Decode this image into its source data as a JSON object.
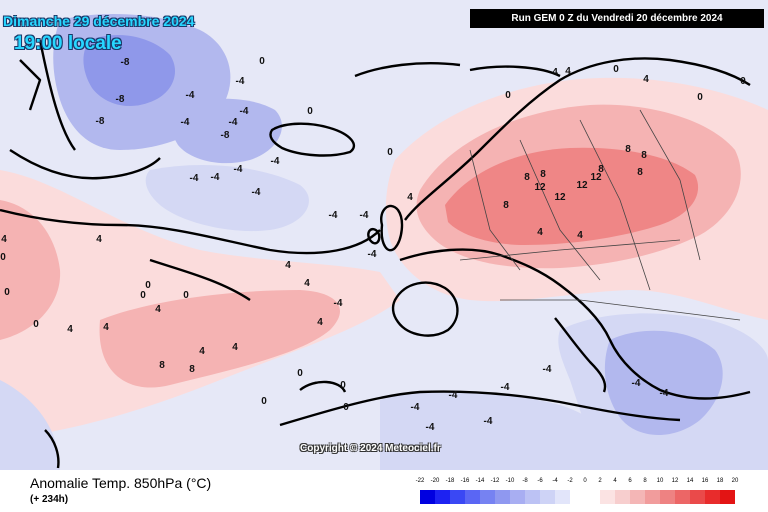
{
  "header": {
    "date_text": "Dimanche 29 décembre 2024",
    "time_text": "19:00 locale",
    "run_text": "Run GEM 0 Z du Vendredi 20 décembre 2024"
  },
  "footer": {
    "title": "Anomalie Temp. 850hPa (°C)",
    "lead_time": "(+ 234h)",
    "copyright": "Copyright © 2024 Meteociel.fr"
  },
  "legend": {
    "labels": [
      "-22",
      "-20",
      "-18",
      "-16",
      "-14",
      "-12",
      "-10",
      "-8",
      "-6",
      "-4",
      "-2",
      "0",
      "2",
      "4",
      "6",
      "8",
      "10",
      "12",
      "14",
      "16",
      "18",
      "20"
    ],
    "colors": [
      "#0000e0",
      "#1d22f2",
      "#3a48f4",
      "#5a66f4",
      "#7682f2",
      "#8f98f0",
      "#a8aef2",
      "#bcc2f4",
      "#ced3f6",
      "#e2e5fa",
      "#ffffff",
      "#ffffff",
      "#fbe3e3",
      "#f7cece",
      "#f4b6b6",
      "#f19c9c",
      "#ee8282",
      "#ec6666",
      "#ea4a4a",
      "#e82c2c",
      "#e31414"
    ]
  },
  "map_labels": [
    {
      "group": "north_atlantic",
      "values": [
        "-8",
        "-8",
        "-8",
        "-4",
        "-4",
        "-4",
        "-4",
        "-8",
        "-4",
        "-4",
        "-4",
        "-4",
        "-4",
        "-4",
        "-4",
        "-4",
        "0",
        "0",
        "0",
        "0"
      ]
    },
    {
      "group": "scandinavia_europe",
      "values": [
        "12",
        "12",
        "12",
        "12",
        "8",
        "8",
        "8",
        "8",
        "8",
        "8",
        "8",
        "4",
        "4",
        "4",
        "4",
        "4",
        "4",
        "0",
        "0",
        "0"
      ]
    },
    {
      "group": "mid_atlantic",
      "values": [
        "4",
        "4",
        "4",
        "8",
        "8",
        "4",
        "4",
        "4",
        "0",
        "0",
        "0",
        "4",
        "4",
        "0",
        "0",
        "0",
        "4",
        "-4",
        "-4",
        "4"
      ]
    },
    {
      "group": "mediterranean",
      "values": [
        "-4",
        "-4",
        "-4",
        "-4",
        "-4",
        "-4",
        "0",
        "0",
        "0",
        "0",
        "-4",
        "-4"
      ]
    }
  ],
  "colors": {
    "ocean_base": "#e3e6f7",
    "warm_light": "#fbdcdc",
    "warm_mid": "#f5b3b3",
    "warm_strong": "#ef8686",
    "cold_light": "#d4d8f4",
    "cold_mid": "#b2b8ee",
    "cold_strong": "#8f98ea",
    "coast": "#000000",
    "border": "#444444"
  }
}
